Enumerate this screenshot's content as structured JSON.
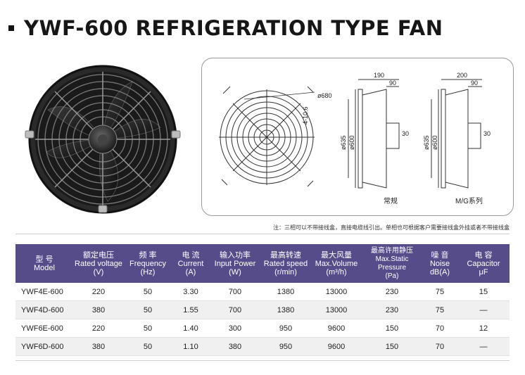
{
  "page": {
    "title": "YWF-600 REFRIGERATION TYPE FAN"
  },
  "drawing": {
    "dims": {
      "d680": "ø680",
      "r4": "4-10.6",
      "d635_a": "ø635",
      "d600_a": "ø600",
      "d635_b": "ø635",
      "d600_b": "ø600",
      "w190": "190",
      "w90_a": "90",
      "w30_a": "30",
      "w200": "200",
      "w90_b": "90",
      "w30_b": "30"
    },
    "label_regular": "常规",
    "label_mg": "M/G系列"
  },
  "note": "注：三相可以不带接线盒，直接电缆线引出。单相也可根据客户需要接线盒外挂或者不带接线盒",
  "table": {
    "headers": [
      {
        "cn": "型 号",
        "en": "Model"
      },
      {
        "cn": "额定电压",
        "en": "Rated voltage",
        "unit": "(V)"
      },
      {
        "cn": "频 率",
        "en": "Frequency",
        "unit": "(Hz)"
      },
      {
        "cn": "电 流",
        "en": "Current",
        "unit": "(A)"
      },
      {
        "cn": "输入功率",
        "en": "Input Power",
        "unit": "(W)"
      },
      {
        "cn": "最高转速",
        "en": "Rated speed",
        "unit": "(r/min)"
      },
      {
        "cn": "最大风量",
        "en": "Max.Volume",
        "unit": "(m³/h)"
      },
      {
        "cn": "最高许用静压",
        "en": "Max.Static Pressure",
        "unit": "(Pa)"
      },
      {
        "cn": "噪 音",
        "en": "Noise",
        "unit": "dB(A)"
      },
      {
        "cn": "电 容",
        "en": "Capacitor",
        "unit": "μF"
      }
    ],
    "rows": [
      [
        "YWF4E-600",
        "220",
        "50",
        "3.30",
        "700",
        "1380",
        "13000",
        "230",
        "75",
        "15"
      ],
      [
        "YWF4D-600",
        "380",
        "50",
        "1.55",
        "700",
        "1380",
        "13000",
        "230",
        "75",
        "—"
      ],
      [
        "YWF6E-600",
        "220",
        "50",
        "1.40",
        "300",
        "950",
        "9600",
        "150",
        "70",
        "12"
      ],
      [
        "YWF6D-600",
        "380",
        "50",
        "1.10",
        "380",
        "950",
        "9600",
        "150",
        "70",
        "—"
      ]
    ]
  }
}
